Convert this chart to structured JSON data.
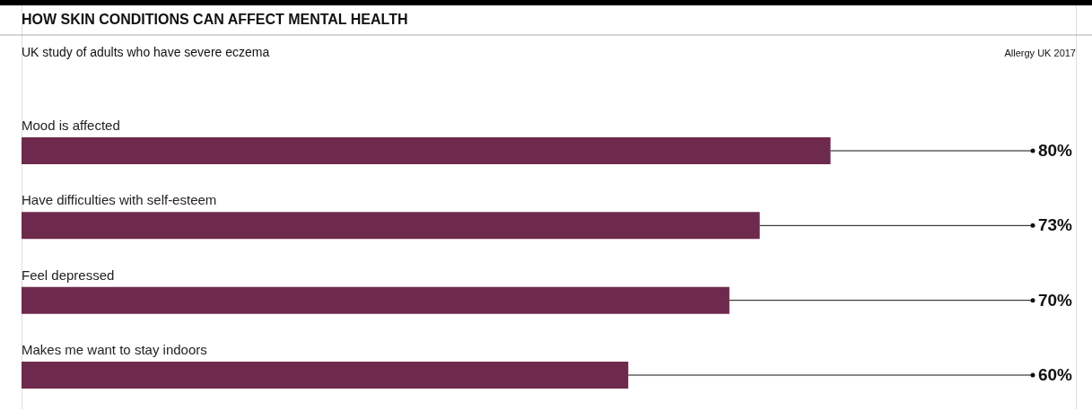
{
  "chart_data": {
    "type": "bar",
    "orientation": "horizontal",
    "title": "HOW SKIN CONDITIONS CAN AFFECT MENTAL HEALTH",
    "subtitle": "UK study of adults who have severe eczema",
    "categories": [
      "Mood is affected",
      "Have difficulties with self-esteem",
      "Feel depressed",
      "Makes me want to stay indoors"
    ],
    "values": [
      80,
      73,
      70,
      60
    ],
    "value_labels": [
      "80%",
      "73%",
      "70%",
      "60%"
    ],
    "color": "#6e2a4c",
    "annotations": [
      "Allergy UK 2017"
    ]
  }
}
